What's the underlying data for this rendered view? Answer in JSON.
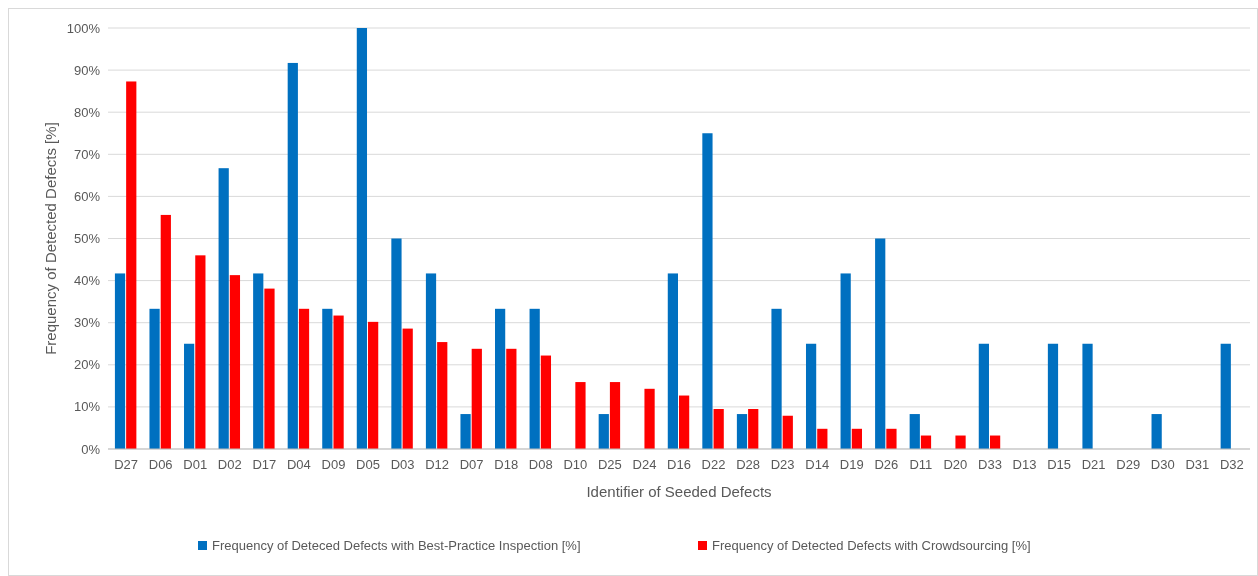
{
  "chart_data": {
    "type": "bar",
    "xlabel": "Identifier of Seeded Defects",
    "ylabel": "Frequency of Detected Defects [%]",
    "categories": [
      "D27",
      "D06",
      "D01",
      "D02",
      "D17",
      "D04",
      "D09",
      "D05",
      "D03",
      "D12",
      "D07",
      "D18",
      "D08",
      "D10",
      "D25",
      "D24",
      "D16",
      "D22",
      "D28",
      "D23",
      "D14",
      "D19",
      "D26",
      "D11",
      "D20",
      "D33",
      "D13",
      "D15",
      "D21",
      "D29",
      "D30",
      "D31",
      "D32"
    ],
    "series": [
      {
        "name": "Frequency of Deteced Defects with Best-Practice Inspection [%]",
        "color": "#0070c0",
        "values": [
          41.7,
          33.3,
          25,
          66.7,
          41.7,
          91.7,
          33.3,
          100,
          50,
          41.7,
          8.3,
          33.3,
          33.3,
          0,
          8.3,
          0,
          41.7,
          75,
          8.3,
          33.3,
          25,
          41.7,
          50,
          8.3,
          0,
          25,
          0,
          25,
          25,
          0,
          8.3,
          0,
          25
        ]
      },
      {
        "name": "Frequency of Detected Defects with Crowdsourcing [%]",
        "color": "#ff0000",
        "values": [
          87.3,
          55.6,
          46,
          41.3,
          38.1,
          33.3,
          31.7,
          30.2,
          28.6,
          25.4,
          23.8,
          23.8,
          22.2,
          15.9,
          15.9,
          14.3,
          12.7,
          9.5,
          9.5,
          7.9,
          4.8,
          4.8,
          4.8,
          3.2,
          3.2,
          3.2,
          0,
          0,
          0,
          0,
          0,
          0,
          0
        ]
      }
    ],
    "ylim": [
      0,
      100
    ],
    "yticks": [
      {
        "value": 0,
        "label": "0%"
      },
      {
        "value": 10,
        "label": "10%"
      },
      {
        "value": 20,
        "label": "20%"
      },
      {
        "value": 30,
        "label": "30%"
      },
      {
        "value": 40,
        "label": "40%"
      },
      {
        "value": 50,
        "label": "50%"
      },
      {
        "value": 60,
        "label": "60%"
      },
      {
        "value": 70,
        "label": "70%"
      },
      {
        "value": 80,
        "label": "80%"
      },
      {
        "value": 90,
        "label": "90%"
      },
      {
        "value": 100,
        "label": "100%"
      }
    ],
    "grid": "y",
    "legend": "bottom"
  }
}
